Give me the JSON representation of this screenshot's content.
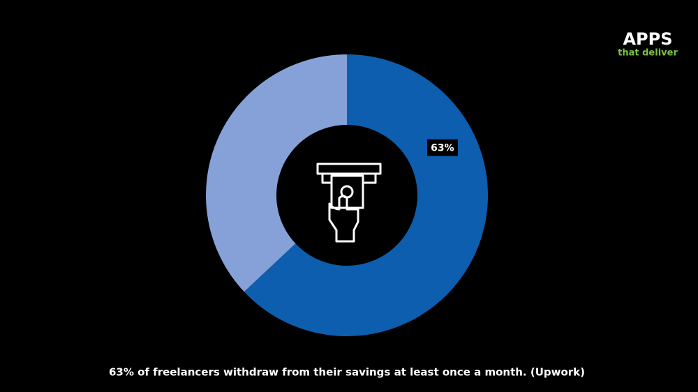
{
  "chart_data": {
    "type": "donut",
    "values": [
      63,
      37
    ],
    "value_labels": [
      "63%",
      null
    ],
    "colors": [
      "#0d5eae",
      "#86a1d8"
    ],
    "caption": "63% of freelancers withdraw from their savings at least once a month. (Upwork)"
  },
  "logo": {
    "title": "APPS",
    "tagline": "that deliver"
  }
}
